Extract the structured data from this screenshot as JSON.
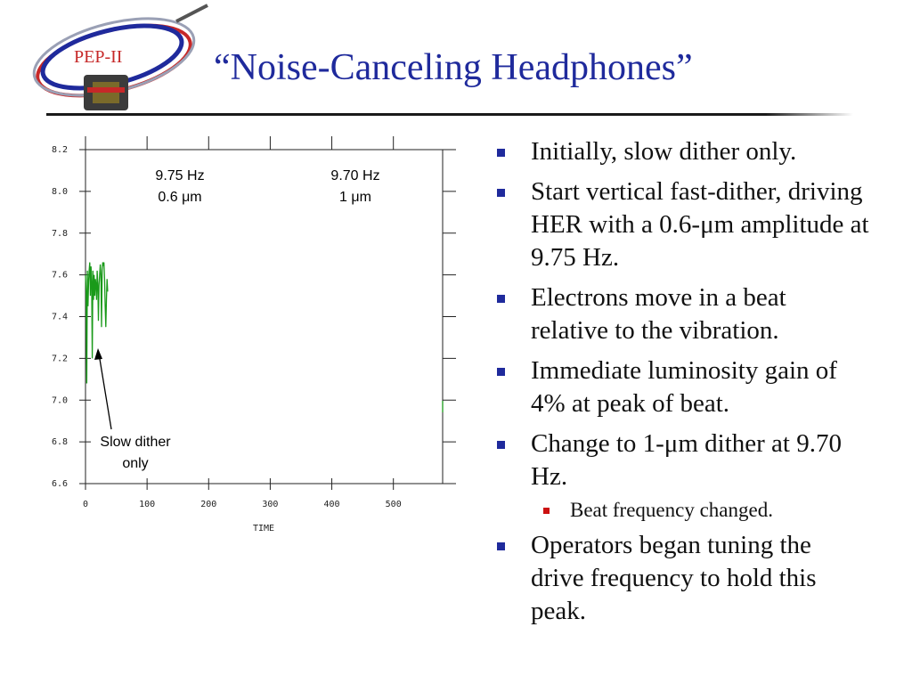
{
  "slide": {
    "logo_text": "PEP-II",
    "title": "“Noise-Canceling Headphones”",
    "colors": {
      "title": "#1f2a9c",
      "bullet": "#1f2a9c",
      "sub_bullet": "#cc1111",
      "trace": "#1a9a1a"
    }
  },
  "chart_data": {
    "type": "line",
    "xlabel": "TIME",
    "ylabel": "",
    "xlim": [
      0,
      580
    ],
    "ylim": [
      6.6,
      8.2
    ],
    "x_ticks": [
      "0",
      "100",
      "200",
      "300",
      "400",
      "500"
    ],
    "y_ticks": [
      "6.6",
      "6.8",
      "7.0",
      "7.2",
      "7.4",
      "7.6",
      "7.8",
      "8.0",
      "8.2"
    ],
    "series": [
      {
        "x": [
          0,
          1,
          2,
          3,
          4,
          5,
          6,
          7,
          8,
          9,
          10,
          11,
          12,
          13,
          14,
          15,
          16,
          17,
          18,
          19,
          20,
          21,
          22,
          23,
          24,
          25,
          26,
          27,
          28,
          29,
          30,
          31,
          32,
          33,
          34,
          35,
          36
        ],
        "y": [
          7.6,
          7.52,
          7.08,
          7.62,
          7.45,
          7.57,
          7.62,
          7.66,
          7.5,
          7.64,
          7.57,
          7.2,
          7.62,
          7.48,
          7.6,
          7.5,
          7.58,
          7.55,
          7.48,
          7.62,
          7.56,
          7.38,
          7.55,
          7.6,
          7.65,
          7.6,
          7.35,
          7.62,
          7.66,
          7.65,
          7.66,
          7.58,
          7.45,
          7.35,
          7.48,
          7.58,
          7.52
        ]
      }
    ],
    "annotations": {
      "label_975": {
        "freq": "9.75 Hz",
        "amp": "0.6 μm"
      },
      "label_970": {
        "freq": "9.70 Hz",
        "amp": "1 μm"
      },
      "slow_dither": {
        "line1": "Slow dither",
        "line2": "only"
      }
    }
  },
  "bullets": [
    {
      "text": "Initially, slow dither only."
    },
    {
      "text": "Start vertical fast-dither, driving HER with a 0.6-μm amplitude at 9.75 Hz."
    },
    {
      "text": "Electrons move in a beat relative to the vibration."
    },
    {
      "text": "Immediate luminosity gain of 4% at peak of beat."
    },
    {
      "text": "Change to 1-μm dither at 9.70 Hz."
    },
    {
      "text": "Beat frequency changed.",
      "sub": true
    },
    {
      "text": "Operators began tuning the drive frequency to hold this peak."
    }
  ]
}
